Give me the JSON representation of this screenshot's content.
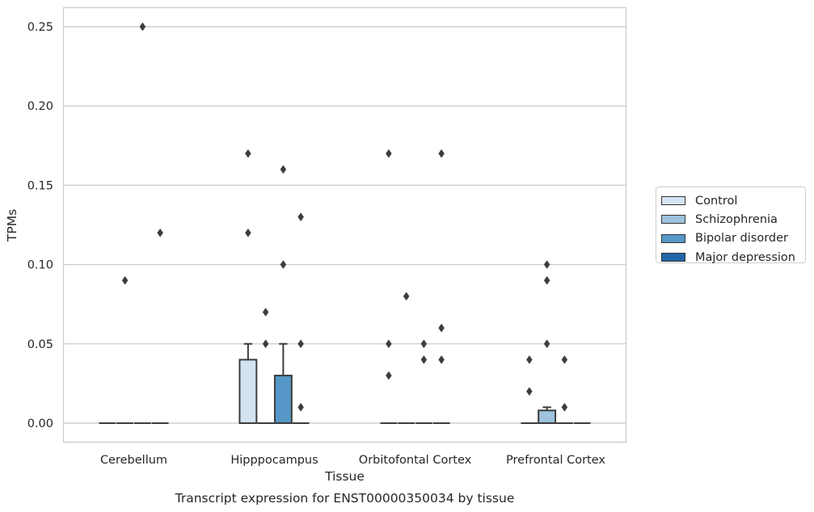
{
  "chart_data": {
    "type": "box",
    "title": "",
    "caption": "Transcript expression for ENST00000350034 by tissue",
    "xlabel": "Tissue",
    "ylabel": "TPMs",
    "ylim": [
      -0.012,
      0.262
    ],
    "yticks": [
      0.0,
      0.05,
      0.1,
      0.15,
      0.2,
      0.25
    ],
    "ytick_labels": [
      "0.00",
      "0.05",
      "0.10",
      "0.15",
      "0.20",
      "0.25"
    ],
    "grid": "horizontal",
    "legend_position": "outside-right",
    "categories": [
      "Cerebellum",
      "Hipppocampus",
      "Orbitofontal Cortex",
      "Prefrontal Cortex"
    ],
    "series": [
      {
        "name": "Control",
        "color": "#d4e3f2",
        "boxes": [
          {
            "q1": 0,
            "median": 0,
            "q3": 0,
            "whisker_low": 0,
            "whisker_high": 0,
            "outliers": []
          },
          {
            "q1": 0,
            "median": 0,
            "q3": 0.04,
            "whisker_low": 0,
            "whisker_high": 0.05,
            "outliers": [
              0.12,
              0.17
            ]
          },
          {
            "q1": 0,
            "median": 0,
            "q3": 0,
            "whisker_low": 0,
            "whisker_high": 0,
            "outliers": [
              0.03,
              0.05,
              0.17
            ]
          },
          {
            "q1": 0,
            "median": 0,
            "q3": 0,
            "whisker_low": 0,
            "whisker_high": 0,
            "outliers": [
              0.02,
              0.04
            ]
          }
        ]
      },
      {
        "name": "Schizophrenia",
        "color": "#9dc3de",
        "boxes": [
          {
            "q1": 0,
            "median": 0,
            "q3": 0,
            "whisker_low": 0,
            "whisker_high": 0,
            "outliers": [
              0.09
            ]
          },
          {
            "q1": 0,
            "median": 0,
            "q3": 0,
            "whisker_low": 0,
            "whisker_high": 0,
            "outliers": [
              0.05,
              0.07
            ]
          },
          {
            "q1": 0,
            "median": 0,
            "q3": 0,
            "whisker_low": 0,
            "whisker_high": 0,
            "outliers": [
              0.08
            ]
          },
          {
            "q1": 0,
            "median": 0,
            "q3": 0.008,
            "whisker_low": 0,
            "whisker_high": 0.01,
            "outliers": [
              0.05,
              0.09,
              0.1
            ]
          }
        ]
      },
      {
        "name": "Bipolar disorder",
        "color": "#5597c6",
        "boxes": [
          {
            "q1": 0,
            "median": 0,
            "q3": 0,
            "whisker_low": 0,
            "whisker_high": 0,
            "outliers": [
              0.25
            ]
          },
          {
            "q1": 0,
            "median": 0,
            "q3": 0.03,
            "whisker_low": 0,
            "whisker_high": 0.05,
            "outliers": [
              0.1,
              0.16
            ]
          },
          {
            "q1": 0,
            "median": 0,
            "q3": 0,
            "whisker_low": 0,
            "whisker_high": 0,
            "outliers": [
              0.04,
              0.05
            ]
          },
          {
            "q1": 0,
            "median": 0,
            "q3": 0,
            "whisker_low": 0,
            "whisker_high": 0,
            "outliers": [
              0.01,
              0.04
            ]
          }
        ]
      },
      {
        "name": "Major depression",
        "color": "#2266a8",
        "boxes": [
          {
            "q1": 0,
            "median": 0,
            "q3": 0,
            "whisker_low": 0,
            "whisker_high": 0,
            "outliers": [
              0.12
            ]
          },
          {
            "q1": 0,
            "median": 0,
            "q3": 0,
            "whisker_low": 0,
            "whisker_high": 0,
            "outliers": [
              0.01,
              0.05,
              0.13
            ]
          },
          {
            "q1": 0,
            "median": 0,
            "q3": 0,
            "whisker_low": 0,
            "whisker_high": 0,
            "outliers": [
              0.04,
              0.06,
              0.17
            ]
          },
          {
            "q1": 0,
            "median": 0,
            "q3": 0,
            "whisker_low": 0,
            "whisker_high": 0,
            "outliers": []
          }
        ]
      }
    ]
  }
}
